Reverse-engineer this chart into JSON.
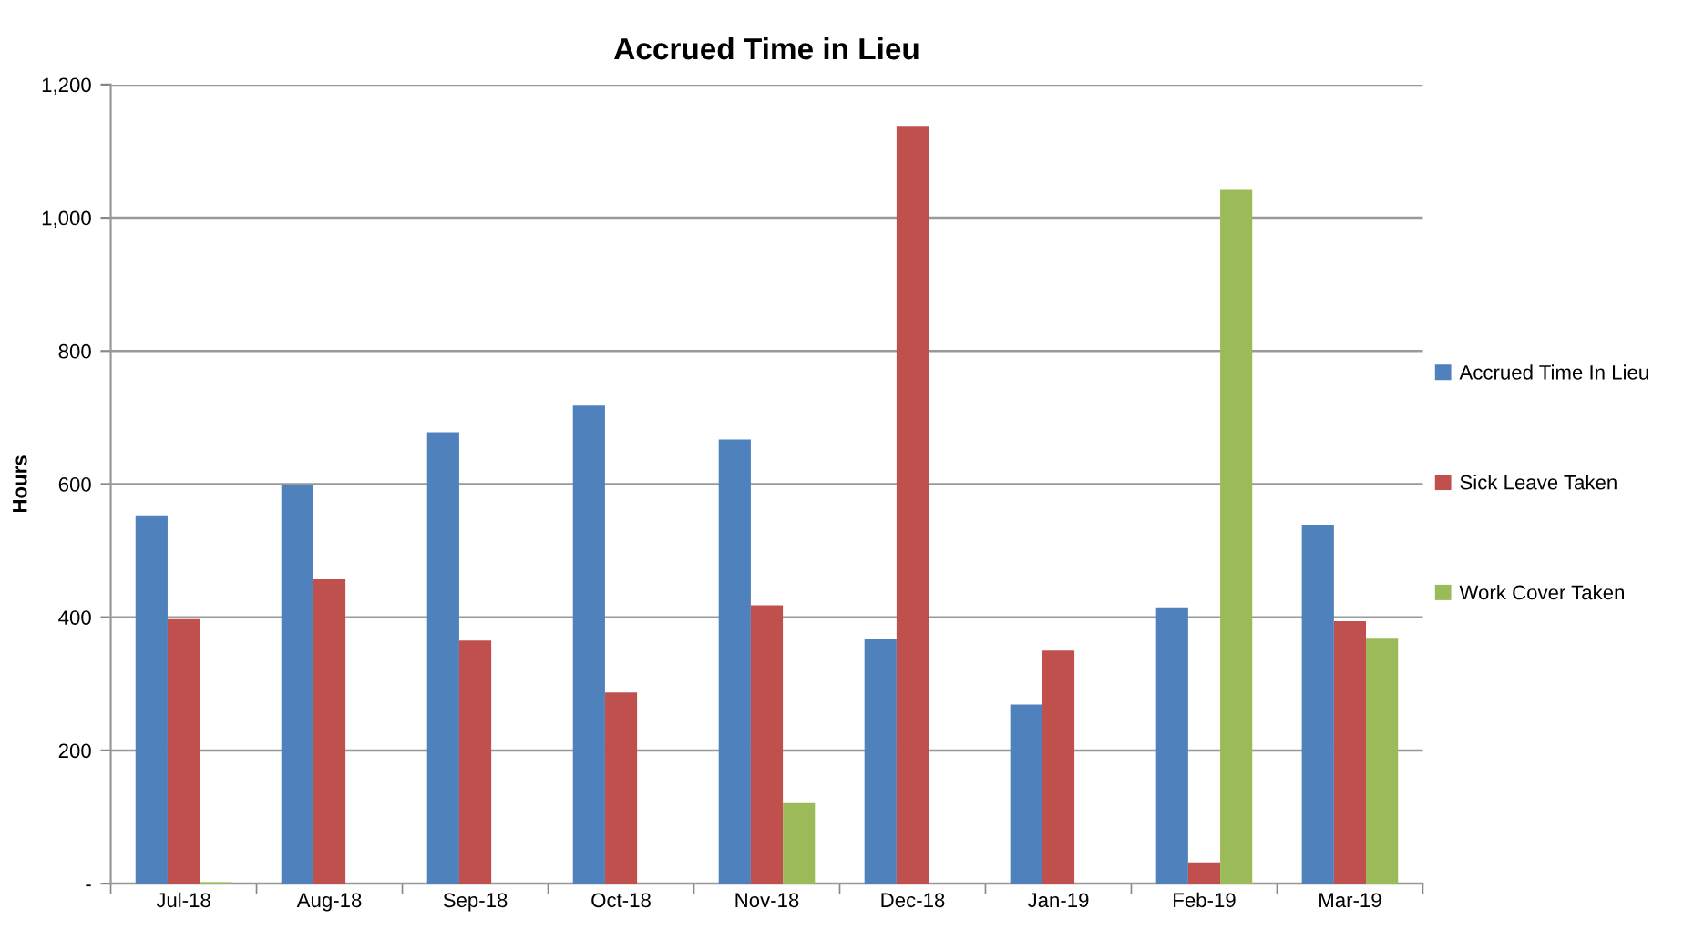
{
  "chart_data": {
    "type": "bar",
    "title": "Accrued Time in Lieu",
    "ylabel": "Hours",
    "categories": [
      "Jul-18",
      "Aug-18",
      "Sep-18",
      "Oct-18",
      "Nov-18",
      "Dec-18",
      "Jan-19",
      "Feb-19",
      "Mar-19"
    ],
    "series": [
      {
        "name": "Accrued Time In Lieu",
        "color": "#4f81bd",
        "values": [
          553,
          598,
          678,
          718,
          667,
          367,
          269,
          415,
          539
        ]
      },
      {
        "name": "Sick Leave Taken",
        "color": "#c0504d",
        "values": [
          397,
          457,
          365,
          287,
          418,
          1138,
          350,
          32,
          394
        ]
      },
      {
        "name": "Work Cover Taken",
        "color": "#9bbb59",
        "values": [
          2,
          0,
          0,
          0,
          121,
          0,
          0,
          1042,
          369
        ]
      }
    ],
    "ylim": [
      0,
      1200
    ],
    "yticks": [
      {
        "value": 0,
        "label": "-"
      },
      {
        "value": 200,
        "label": "200"
      },
      {
        "value": 400,
        "label": "400"
      },
      {
        "value": 600,
        "label": "600"
      },
      {
        "value": 800,
        "label": "800"
      },
      {
        "value": 1000,
        "label": "1,000"
      },
      {
        "value": 1200,
        "label": "1,200"
      }
    ],
    "grid": "y",
    "legend": "right"
  }
}
